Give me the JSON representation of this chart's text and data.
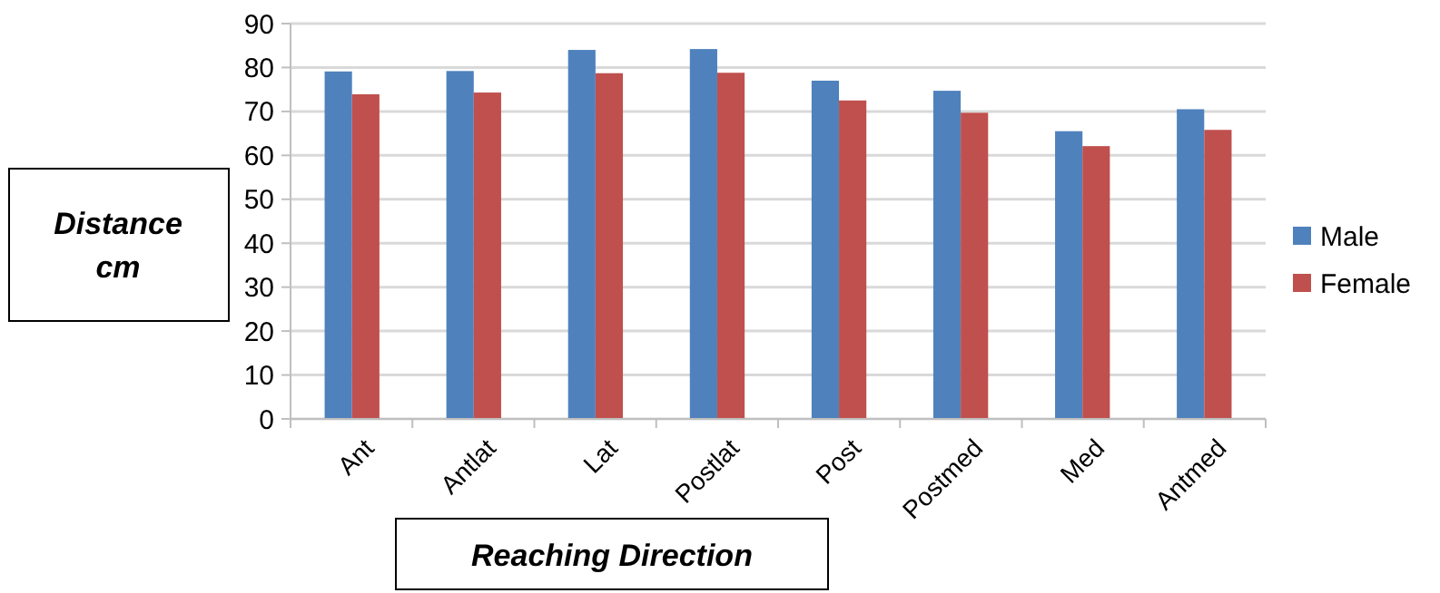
{
  "chart_data": {
    "type": "bar",
    "xlabel": "Reaching Direction",
    "ylabel": "Distance cm",
    "categories": [
      "Ant",
      "Antlat",
      "Lat",
      "Postlat",
      "Post",
      "Postmed",
      "Med",
      "Antmed"
    ],
    "series": [
      {
        "name": "Male",
        "color": "#4f81bd",
        "values": [
          79.1,
          79.2,
          84,
          84.2,
          77,
          74.7,
          65.5,
          70.5
        ]
      },
      {
        "name": "Female",
        "color": "#c0504d",
        "values": [
          73.9,
          74.3,
          78.7,
          78.8,
          72.5,
          69.7,
          62.1,
          65.8
        ]
      }
    ],
    "ylim": [
      0,
      90
    ],
    "yticks": [
      0,
      10,
      20,
      30,
      40,
      50,
      60,
      70,
      80,
      90
    ],
    "grid": "y",
    "legend": "right"
  }
}
